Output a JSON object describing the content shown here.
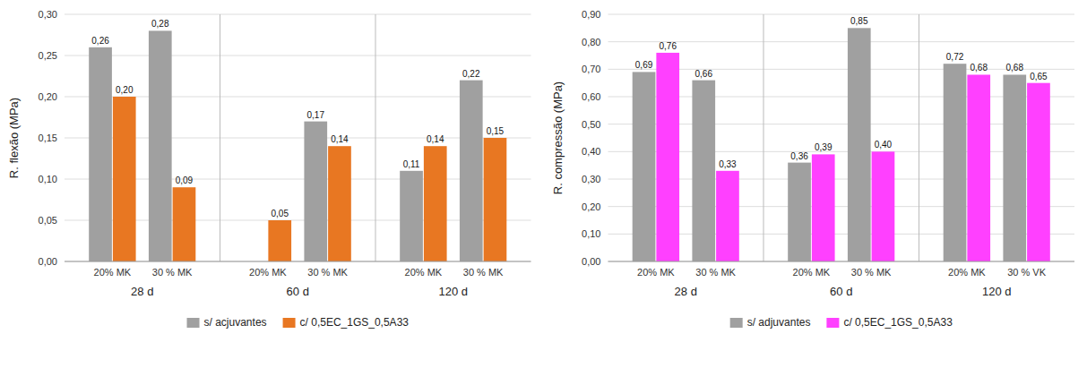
{
  "chart_data": [
    {
      "type": "bar",
      "ylabel": "R. flexão (MPa)",
      "categories": [
        "20% MK",
        "30 % MK",
        "20% MK",
        "30 % MK",
        "20% MK",
        "30 % MK"
      ],
      "group_labels": [
        "28 d",
        "60 d",
        "120 d"
      ],
      "series": [
        {
          "name": "s/ acjuvantes",
          "color": "#A0A0A0",
          "values": [
            0.26,
            0.28,
            0.0,
            0.17,
            0.11,
            0.22
          ],
          "value_labels": [
            "0,26",
            "0,28",
            null,
            "0,17",
            "0,11",
            "0,22"
          ]
        },
        {
          "name": "c/ 0,5EC_1GS_0,5A33",
          "color": "#E87722",
          "values": [
            0.2,
            0.09,
            0.05,
            0.14,
            0.14,
            0.15
          ],
          "value_labels": [
            "0,20",
            "0,09",
            "0,05",
            "0,14",
            "0,14",
            "0,15"
          ]
        }
      ],
      "ylim": [
        0.0,
        0.3
      ],
      "yticks": [
        {
          "value": 0.0,
          "label": "0,00"
        },
        {
          "value": 0.05,
          "label": "0,05"
        },
        {
          "value": 0.1,
          "label": "0,10"
        },
        {
          "value": 0.15,
          "label": "0,15"
        },
        {
          "value": 0.2,
          "label": "0,20"
        },
        {
          "value": 0.25,
          "label": "0,25"
        },
        {
          "value": 0.3,
          "label": "0,30"
        }
      ],
      "grid": true,
      "data_labels": true,
      "legend": "bottom"
    },
    {
      "type": "bar",
      "ylabel": "R. compressão (MPa)",
      "categories": [
        "20% MK",
        "30 % MK",
        "20% MK",
        "30 % MK",
        "20% MK",
        "30 % VK"
      ],
      "group_labels": [
        "28 d",
        "60 d",
        "120 d"
      ],
      "series": [
        {
          "name": "s/ adjuvantes",
          "color": "#A0A0A0",
          "values": [
            0.69,
            0.66,
            0.36,
            0.85,
            0.72,
            0.68
          ],
          "value_labels": [
            "0,69",
            "0,66",
            "0,36",
            "0,85",
            "0,72",
            "0,68"
          ]
        },
        {
          "name": "c/ 0,5EC_1GS_0,5A33",
          "color": "#FF40FF",
          "values": [
            0.76,
            0.33,
            0.39,
            0.4,
            0.68,
            0.65
          ],
          "value_labels": [
            "0,76",
            "0,33",
            "0,39",
            "0,40",
            "0,68",
            "0,65"
          ]
        }
      ],
      "ylim": [
        0.0,
        0.9
      ],
      "yticks": [
        {
          "value": 0.0,
          "label": "0,00"
        },
        {
          "value": 0.1,
          "label": "0,10"
        },
        {
          "value": 0.2,
          "label": "0,20"
        },
        {
          "value": 0.3,
          "label": "0,30"
        },
        {
          "value": 0.4,
          "label": "0,40"
        },
        {
          "value": 0.5,
          "label": "0,50"
        },
        {
          "value": 0.6,
          "label": "0,60"
        },
        {
          "value": 0.7,
          "label": "0,70"
        },
        {
          "value": 0.8,
          "label": "0,80"
        },
        {
          "value": 0.9,
          "label": "0,90"
        }
      ],
      "grid": true,
      "data_labels": true,
      "legend": "bottom"
    }
  ]
}
